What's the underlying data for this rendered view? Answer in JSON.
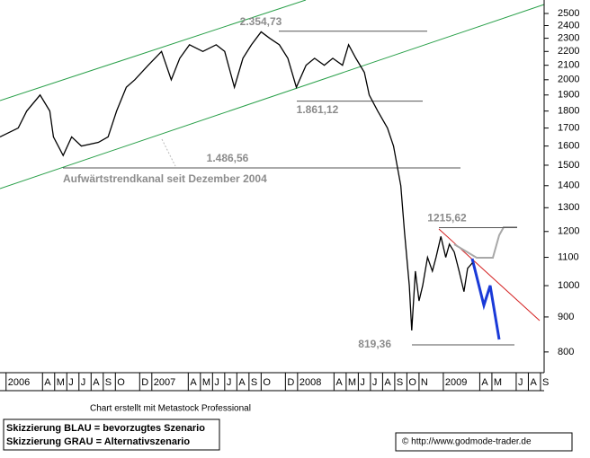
{
  "chart_data": {
    "type": "line",
    "annotation": "Aufwärtstrendkanal seit Dezember 2004",
    "credit": "Chart erstellt mit Metastock Professional",
    "legend_notes": [
      "Skizzierung BLAU = bevorzugtes Szenario",
      "Skizzierung GRAU = Alternativszenario"
    ],
    "source": "© http://www.godmode-trader.de",
    "log_scale": true,
    "color": "#000000",
    "x": [
      -0.5,
      1.0,
      1.7,
      2.8,
      3.6,
      3.9,
      4.7,
      5.4,
      6.2,
      7.6,
      8.4,
      9.1,
      9.9,
      10.6,
      11.7,
      12.8,
      13.6,
      14.3,
      15.1,
      16.2,
      17.3,
      18.0,
      18.8,
      19.5,
      20.2,
      21.0,
      21.7,
      22.5,
      23.2,
      23.9,
      24.7,
      25.4,
      26.2,
      26.9,
      27.7,
      28.2,
      28.8,
      29.5,
      29.9,
      30.6,
      31.4,
      31.9,
      32.5,
      32.8,
      33.2,
      33.4,
      33.7,
      34.0,
      34.3,
      34.7,
      35.1,
      35.4,
      35.8,
      36.2,
      36.5,
      36.9,
      37.3,
      37.7,
      38.0,
      38.4
    ],
    "values": [
      1650,
      1700,
      1800,
      1900,
      1800,
      1650,
      1550,
      1650,
      1600,
      1620,
      1650,
      1800,
      1950,
      2000,
      2100,
      2200,
      2000,
      2150,
      2250,
      2200,
      2250,
      2200,
      1950,
      2150,
      2250,
      2350,
      2300,
      2250,
      2150,
      1950,
      2100,
      2150,
      2100,
      2150,
      2100,
      2250,
      2150,
      2050,
      1900,
      1800,
      1700,
      1600,
      1400,
      1200,
      1000,
      860,
      1050,
      950,
      1000,
      1100,
      1050,
      1100,
      1180,
      1100,
      1150,
      1120,
      1050,
      980,
      1060,
      1080
    ],
    "levels": [
      {
        "value": 2354.73,
        "label": "2.354,73"
      },
      {
        "value": 1861.12,
        "label": "1.861,12"
      },
      {
        "value": 1486.56,
        "label": "1.486,56"
      },
      {
        "value": 1215.62,
        "label": "1215,62"
      },
      {
        "value": 819.36,
        "label": "819,36"
      }
    ],
    "xlim": [
      -0.5,
      44.3
    ],
    "xticks": [
      {
        "value": 0,
        "label": "2006"
      },
      {
        "value": 3,
        "label": "A"
      },
      {
        "value": 4,
        "label": "M"
      },
      {
        "value": 5,
        "label": "J"
      },
      {
        "value": 6,
        "label": "J"
      },
      {
        "value": 7,
        "label": "A"
      },
      {
        "value": 8,
        "label": "S"
      },
      {
        "value": 9,
        "label": "O"
      },
      {
        "value": 11,
        "label": "D"
      },
      {
        "value": 12,
        "label": "2007"
      },
      {
        "value": 15,
        "label": "A"
      },
      {
        "value": 16,
        "label": "M"
      },
      {
        "value": 17,
        "label": "J"
      },
      {
        "value": 18,
        "label": "J"
      },
      {
        "value": 19,
        "label": "A"
      },
      {
        "value": 20,
        "label": "S"
      },
      {
        "value": 21,
        "label": "O"
      },
      {
        "value": 23,
        "label": "D"
      },
      {
        "value": 24,
        "label": "2008"
      },
      {
        "value": 27,
        "label": "A"
      },
      {
        "value": 28,
        "label": "M"
      },
      {
        "value": 29,
        "label": "J"
      },
      {
        "value": 30,
        "label": "J"
      },
      {
        "value": 31,
        "label": "A"
      },
      {
        "value": 32,
        "label": "S"
      },
      {
        "value": 33,
        "label": "O"
      },
      {
        "value": 34,
        "label": "N"
      },
      {
        "value": 36,
        "label": "2009"
      },
      {
        "value": 39,
        "label": "A"
      },
      {
        "value": 40,
        "label": "M"
      },
      {
        "value": 42,
        "label": "J"
      },
      {
        "value": 43,
        "label": "A"
      },
      {
        "value": 44,
        "label": "S"
      }
    ],
    "ylim": [
      746,
      2616
    ],
    "yticks": [
      800,
      900,
      1000,
      1100,
      1200,
      1300,
      1400,
      1500,
      1600,
      1700,
      1800,
      1900,
      2000,
      2100,
      2200,
      2300,
      2400,
      2500
    ]
  }
}
